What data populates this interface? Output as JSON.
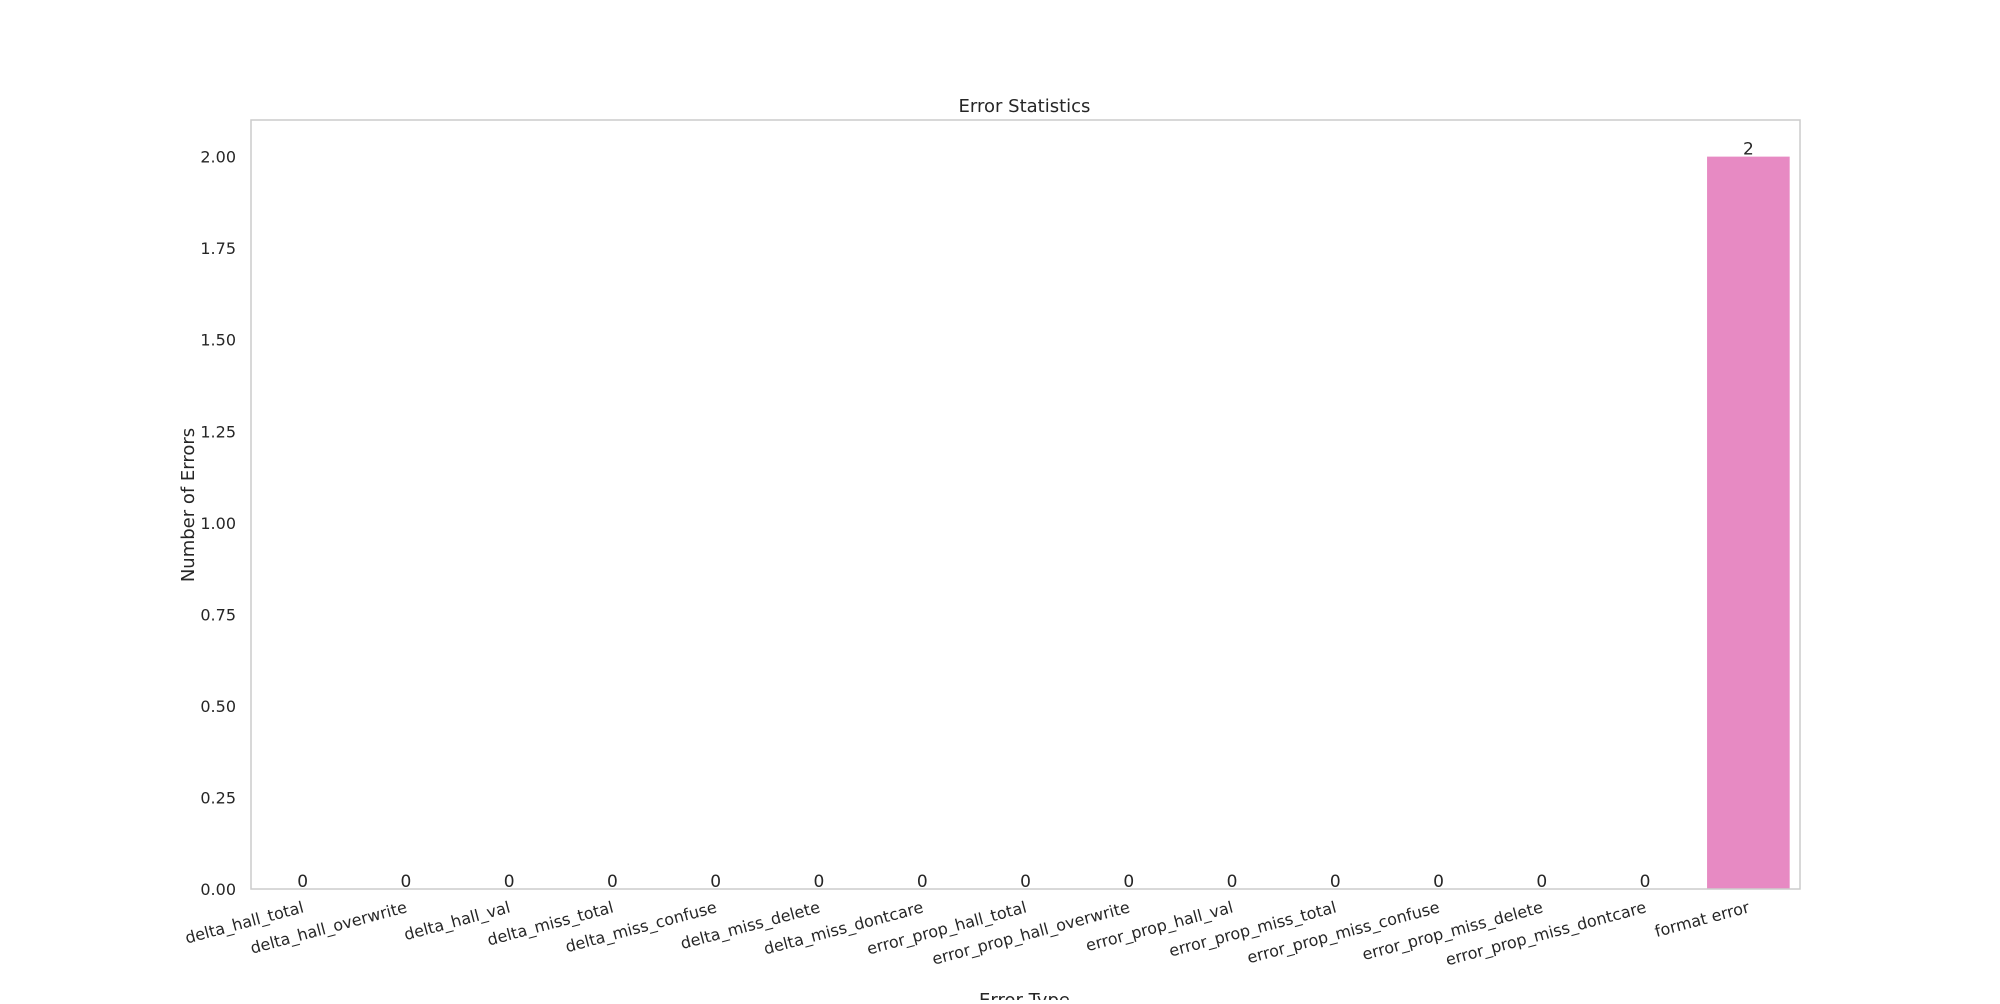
{
  "chart_data": {
    "type": "bar",
    "title": "Error Statistics",
    "xlabel": "Error Type",
    "ylabel": "Number of Errors",
    "categories": [
      "delta_hall_total",
      "delta_hall_overwrite",
      "delta_hall_val",
      "delta_miss_total",
      "delta_miss_confuse",
      "delta_miss_delete",
      "delta_miss_dontcare",
      "error_prop_hall_total",
      "error_prop_hall_overwrite",
      "error_prop_hall_val",
      "error_prop_miss_total",
      "error_prop_miss_confuse",
      "error_prop_miss_delete",
      "error_prop_miss_dontcare",
      "format error"
    ],
    "values": [
      0,
      0,
      0,
      0,
      0,
      0,
      0,
      0,
      0,
      0,
      0,
      0,
      0,
      0,
      2
    ],
    "data_labels": [
      "0",
      "0",
      "0",
      "0",
      "0",
      "0",
      "0",
      "0",
      "0",
      "0",
      "0",
      "0",
      "0",
      "0",
      "2"
    ],
    "ylim": [
      0,
      2.1
    ],
    "yticks": [
      "0.00",
      "0.25",
      "0.50",
      "0.75",
      "1.00",
      "1.25",
      "1.50",
      "1.75",
      "2.00"
    ],
    "grid": false,
    "colors": [
      "#66c2a5",
      "#fc8d62",
      "#8da0cb",
      "#e78ac3",
      "#a6d854",
      "#ffd92f",
      "#e5c494",
      "#b3b3b3",
      "#66c2a5",
      "#fc8d62",
      "#8da0cb",
      "#e78ac3",
      "#a6d854",
      "#ffd92f",
      "#e78ac3"
    ],
    "axes_border_color": "#cccccc"
  }
}
